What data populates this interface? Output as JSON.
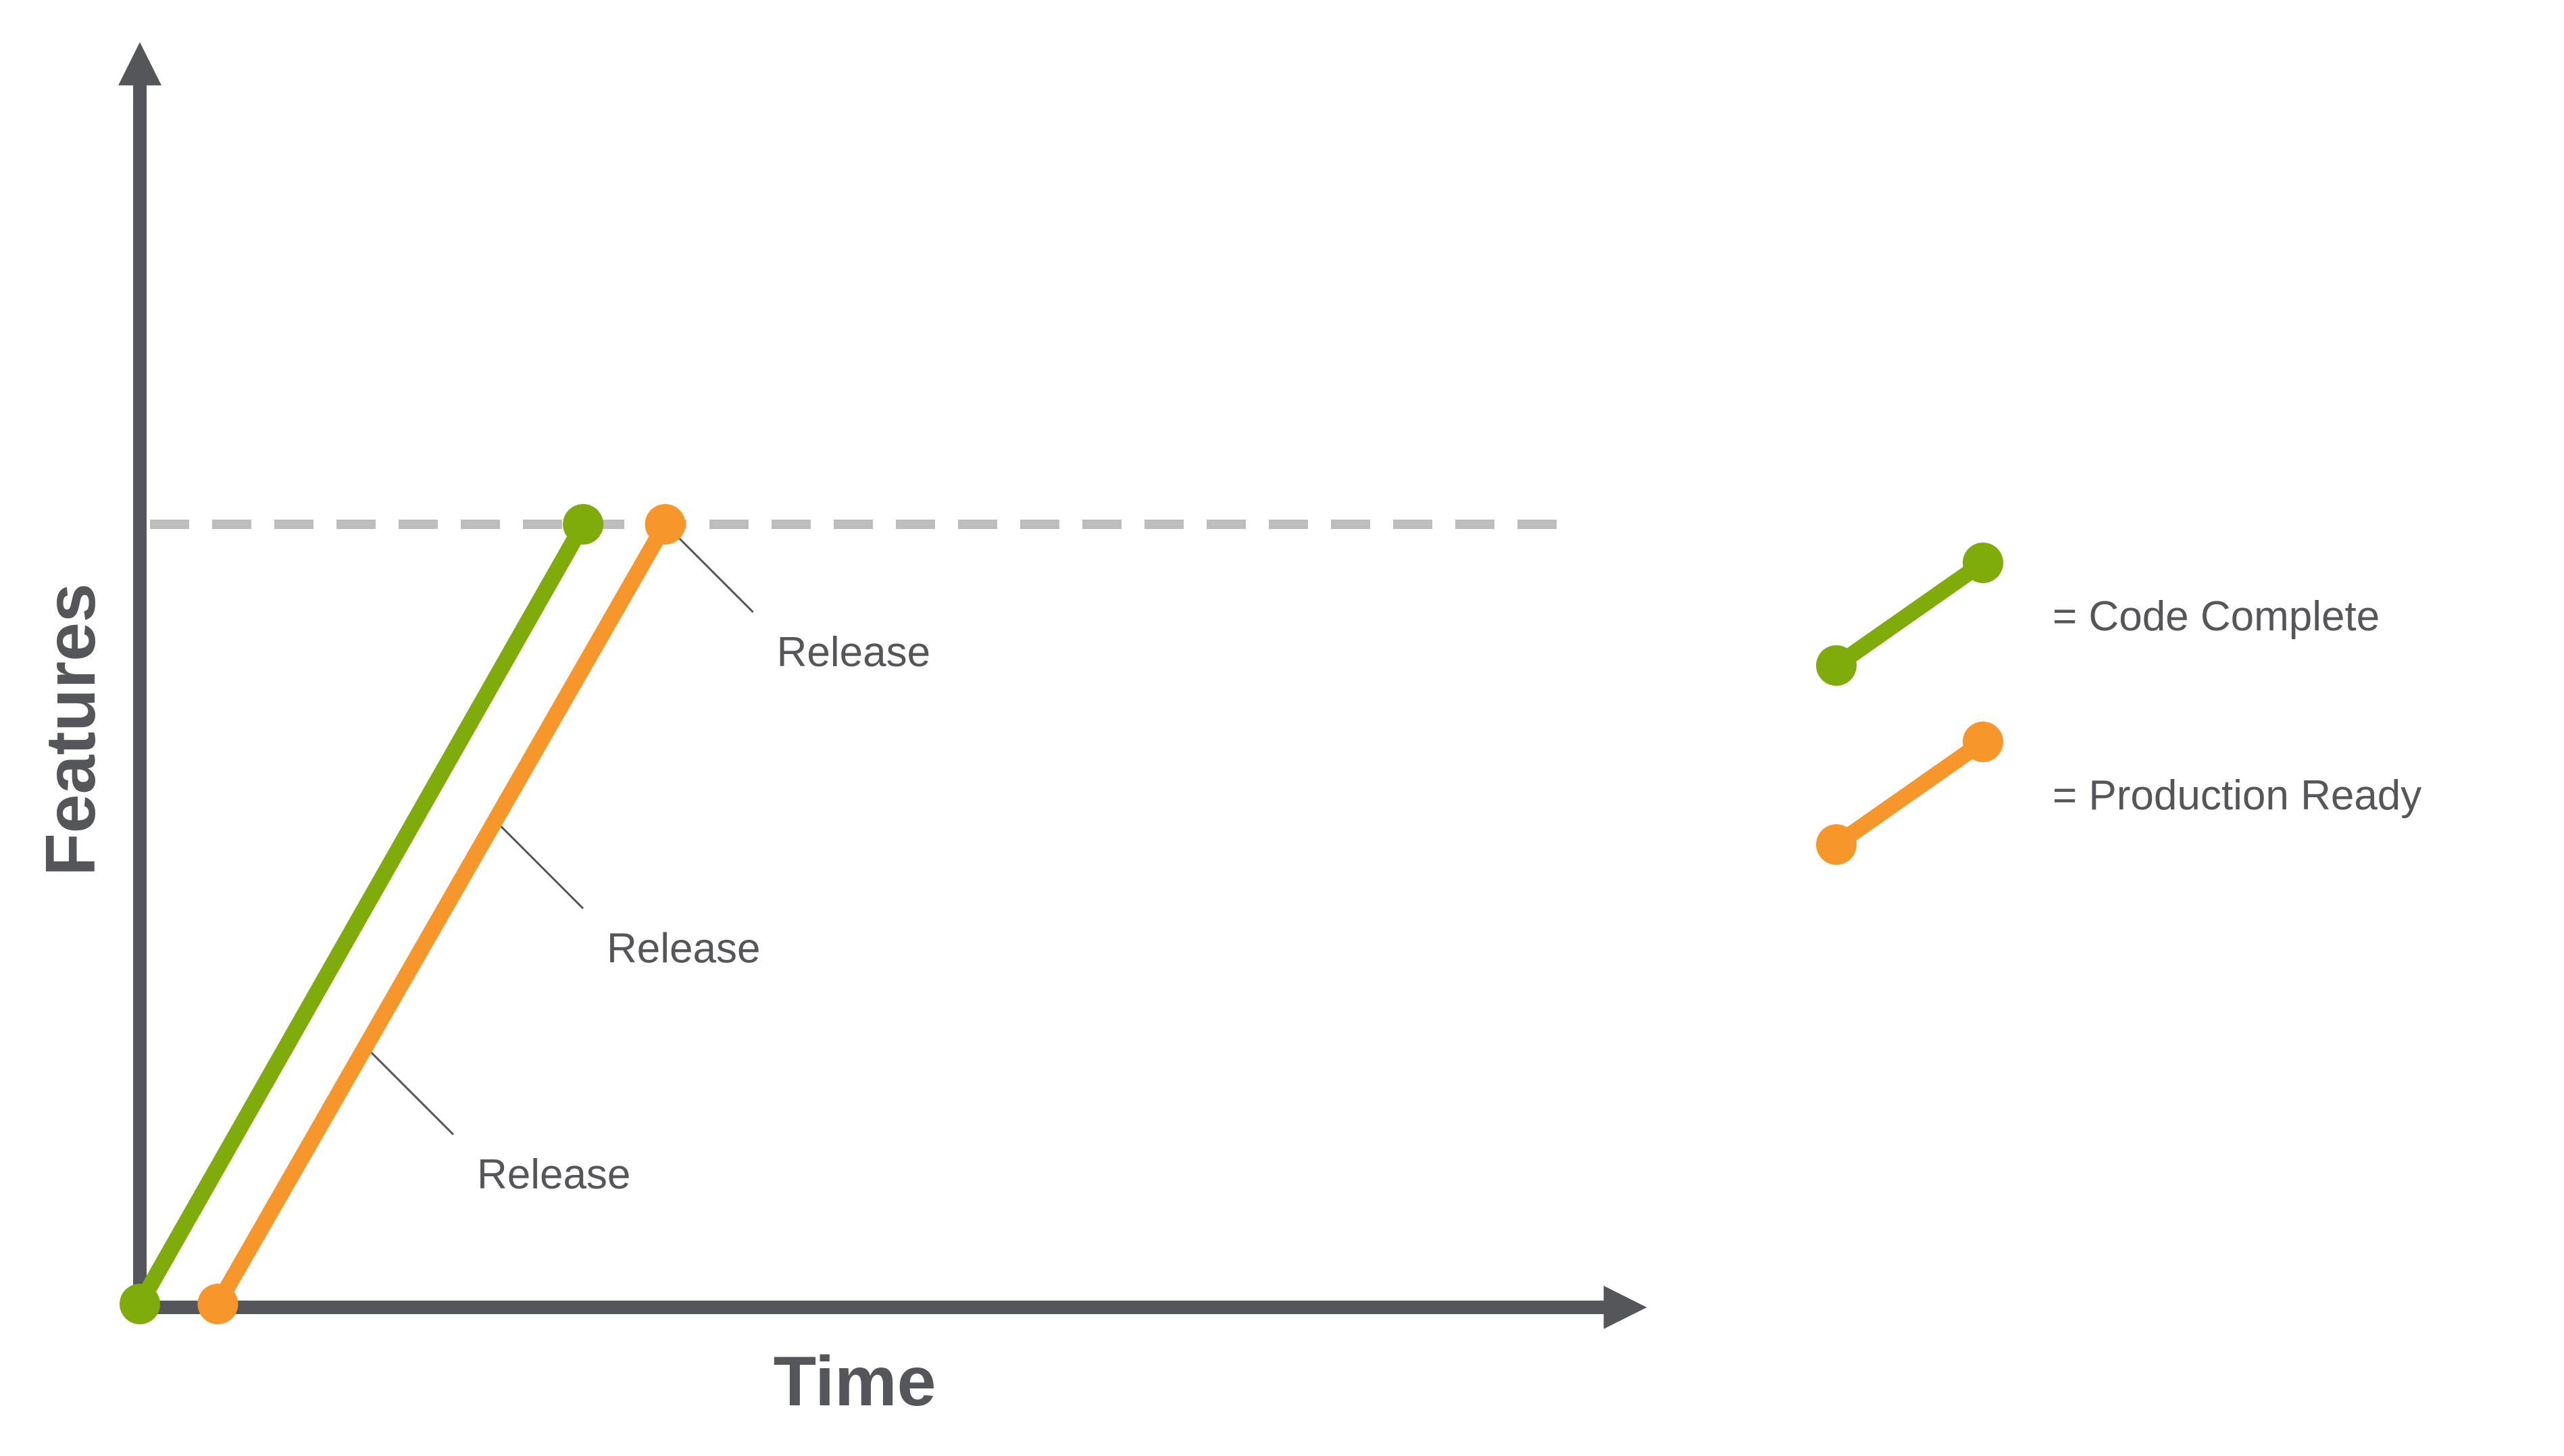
{
  "chart_data": {
    "type": "line",
    "xlabel": "Time",
    "ylabel": "Features",
    "xlim": [
      0,
      10
    ],
    "ylim": [
      0,
      10
    ],
    "grid": false,
    "legend_placement": "right",
    "target_level": 10,
    "series": [
      {
        "name": "= Code Complete",
        "color": "#7fab0b",
        "points": [
          {
            "x": 0,
            "y": 0
          },
          {
            "x": 5.4,
            "y": 10
          }
        ]
      },
      {
        "name": "= Production Ready",
        "color": "#f7962a",
        "points": [
          {
            "x": 0.95,
            "y": 0
          },
          {
            "x": 6.4,
            "y": 10
          }
        ]
      }
    ],
    "annotations": [
      {
        "text": "Release",
        "series": 1,
        "t": 0.33
      },
      {
        "text": "Release",
        "series": 1,
        "t": 0.62
      },
      {
        "text": "Release",
        "series": 1,
        "t": 1.0
      }
    ],
    "colors": {
      "axis": "#55565a",
      "target": "#bdbdbd",
      "leader": "#55565a"
    }
  }
}
